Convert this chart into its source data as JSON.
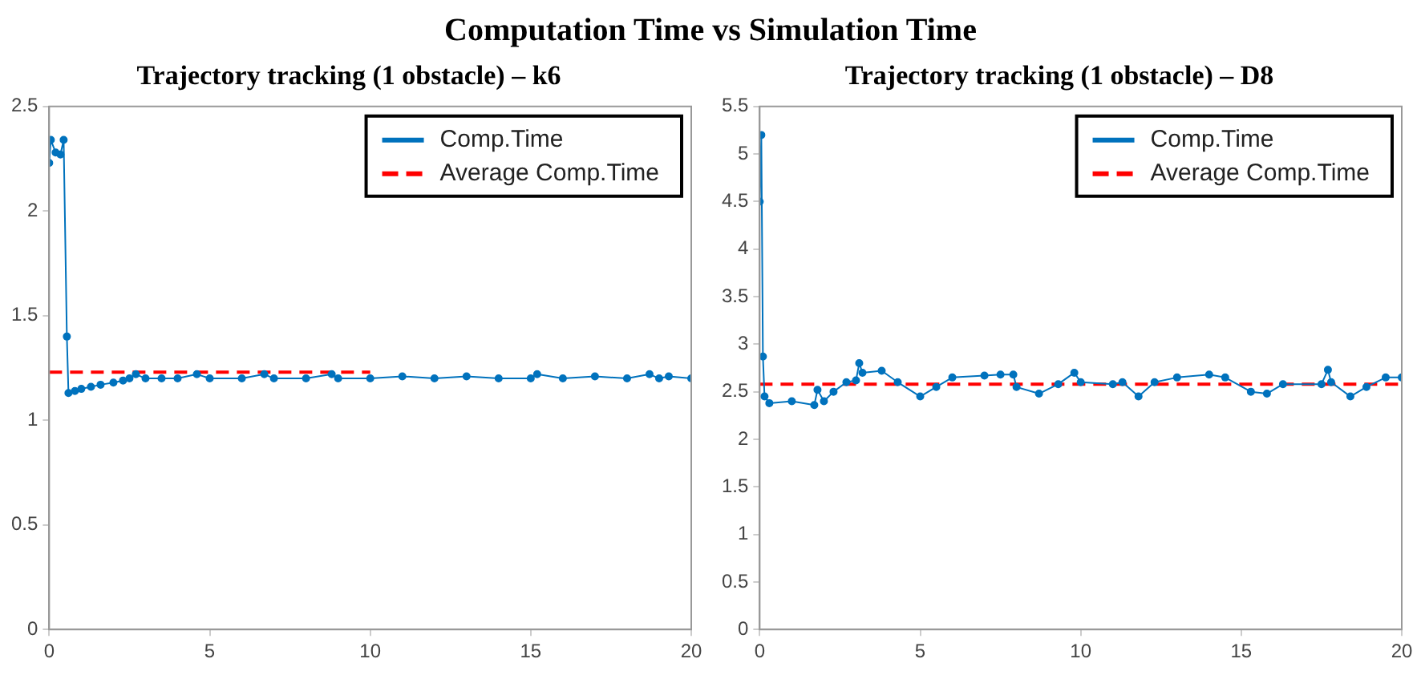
{
  "chart_data": [
    {
      "type": "line",
      "title": "Trajectory tracking (1 obstacle) – k6",
      "annotations": [
        "Computation Time vs Simulation Time"
      ],
      "xlim": [
        0,
        20
      ],
      "xticks": [
        0,
        5,
        10,
        15,
        20
      ],
      "ylim": [
        0,
        2.5
      ],
      "yticks": [
        0,
        0.5,
        1,
        1.5,
        2,
        2.5
      ],
      "grid": false,
      "legend": "top right",
      "series": [
        {
          "name": "Comp.Time",
          "color": "#0072bd",
          "marker": "circle",
          "line_style": "solid",
          "x": [
            0,
            0.05,
            0.2,
            0.35,
            0.45,
            0.55,
            0.6,
            0.8,
            1,
            1.3,
            1.6,
            2,
            2.3,
            2.5,
            2.7,
            3,
            3.5,
            4,
            4.6,
            5,
            6,
            6.7,
            7,
            8,
            8.8,
            9,
            10,
            11,
            12,
            13,
            14,
            15,
            15.2,
            16,
            17,
            18,
            18.7,
            19,
            19.3,
            20
          ],
          "values": [
            2.23,
            2.34,
            2.28,
            2.27,
            2.34,
            1.4,
            1.13,
            1.14,
            1.15,
            1.16,
            1.17,
            1.18,
            1.19,
            1.2,
            1.22,
            1.2,
            1.2,
            1.2,
            1.22,
            1.2,
            1.2,
            1.22,
            1.2,
            1.2,
            1.22,
            1.2,
            1.2,
            1.21,
            1.2,
            1.21,
            1.2,
            1.2,
            1.22,
            1.2,
            1.21,
            1.2,
            1.22,
            1.2,
            1.21,
            1.2
          ]
        },
        {
          "name": "Average Comp.Time",
          "color": "#ff0000",
          "marker": "none",
          "line_style": "dashed",
          "x": [
            0,
            10
          ],
          "values": [
            1.23,
            1.23
          ]
        }
      ]
    },
    {
      "type": "line",
      "title": "Trajectory tracking (1 obstacle) – D8",
      "xlim": [
        0,
        20
      ],
      "xticks": [
        0,
        5,
        10,
        15,
        20
      ],
      "ylim": [
        0,
        5.5
      ],
      "yticks": [
        0,
        0.5,
        1,
        1.5,
        2,
        2.5,
        3,
        3.5,
        4,
        4.5,
        5,
        5.5
      ],
      "grid": false,
      "legend": "top right",
      "series": [
        {
          "name": "Comp.Time",
          "color": "#0072bd",
          "marker": "circle",
          "line_style": "solid",
          "x": [
            0,
            0.05,
            0.1,
            0.15,
            0.3,
            1,
            1.7,
            1.8,
            2,
            2.3,
            2.7,
            3,
            3.1,
            3.2,
            3.8,
            4.3,
            5,
            5.5,
            6,
            7,
            7.5,
            7.9,
            8,
            8.7,
            9.3,
            9.8,
            10,
            11,
            11.3,
            11.8,
            12.3,
            13,
            14,
            14.5,
            15.3,
            15.8,
            16.3,
            17.5,
            17.7,
            17.8,
            18.4,
            18.9,
            19.5,
            20
          ],
          "values": [
            4.5,
            5.2,
            2.87,
            2.45,
            2.38,
            2.4,
            2.36,
            2.52,
            2.4,
            2.5,
            2.6,
            2.62,
            2.8,
            2.7,
            2.72,
            2.6,
            2.45,
            2.55,
            2.65,
            2.67,
            2.68,
            2.68,
            2.55,
            2.48,
            2.58,
            2.7,
            2.6,
            2.58,
            2.6,
            2.45,
            2.6,
            2.65,
            2.68,
            2.65,
            2.5,
            2.48,
            2.58,
            2.58,
            2.73,
            2.6,
            2.45,
            2.55,
            2.65,
            2.65
          ]
        },
        {
          "name": "Average Comp.Time",
          "color": "#ff0000",
          "marker": "none",
          "line_style": "dashed",
          "x": [
            0,
            20
          ],
          "values": [
            2.58,
            2.58
          ]
        }
      ]
    }
  ]
}
